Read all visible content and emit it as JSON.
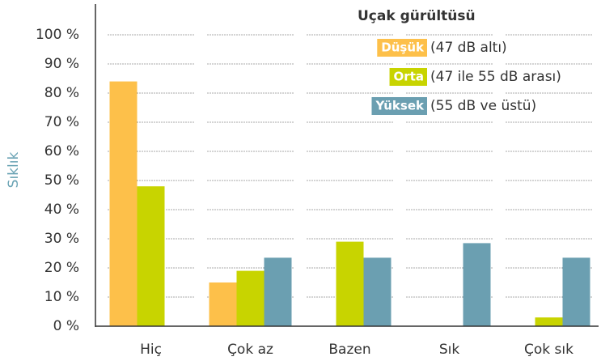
{
  "chart_data": {
    "type": "bar",
    "y_label": "Sıklık",
    "legend_title": "Uçak gürültüsü",
    "categories": [
      "Hiç",
      "Çok az",
      "Bazen",
      "Sık",
      "Çok sık"
    ],
    "series": [
      {
        "name": "Düşük",
        "description": "(47 dB altı)",
        "color": "#fdc04a",
        "values": [
          84,
          15,
          null,
          null,
          null
        ]
      },
      {
        "name": "Orta",
        "description": "(47 ile 55 dB arası)",
        "color": "#c8d400",
        "values": [
          48,
          19,
          29,
          null,
          3
        ]
      },
      {
        "name": "Yüksek",
        "description": "(55 dB ve üstü)",
        "color": "#6b9fb1",
        "values": [
          null,
          23.5,
          23.5,
          28.5,
          23.5
        ]
      }
    ],
    "ylim": [
      0,
      100
    ],
    "yticks": [
      {
        "value": 0,
        "label": "0 %"
      },
      {
        "value": 10,
        "label": "10 %"
      },
      {
        "value": 20,
        "label": "20 %"
      },
      {
        "value": 30,
        "label": "30 %"
      },
      {
        "value": 40,
        "label": "40 %"
      },
      {
        "value": 50,
        "label": "50 %"
      },
      {
        "value": 60,
        "label": "60 %"
      },
      {
        "value": 70,
        "label": "70 %"
      },
      {
        "value": 80,
        "label": "80 %"
      },
      {
        "value": 90,
        "label": "90 %"
      },
      {
        "value": 100,
        "label": "100 %"
      }
    ],
    "grid": true
  }
}
